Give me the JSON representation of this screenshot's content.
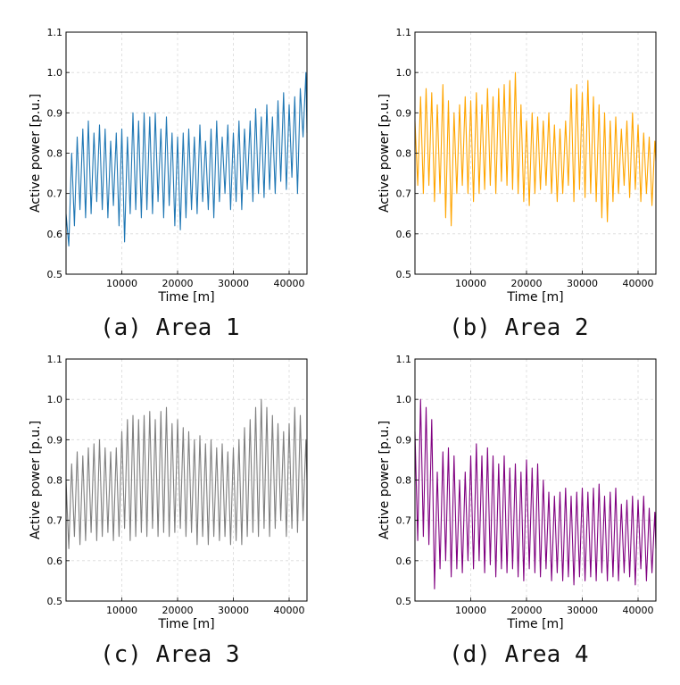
{
  "chart_data": [
    {
      "type": "line",
      "caption": "(a) Area 1",
      "xlabel": "Time [m]",
      "ylabel": "Active power [p.u.]",
      "xlim": [
        0,
        43200
      ],
      "ylim": [
        0.5,
        1.1
      ],
      "xticks": [
        10000,
        20000,
        30000,
        40000
      ],
      "yticks": [
        0.5,
        0.6,
        0.7,
        0.8,
        0.9,
        1.0,
        1.1
      ],
      "grid": true,
      "color": "#1f77b4",
      "series": [
        {
          "x": [
            0,
            500,
            1000,
            1500,
            2000,
            2500,
            3000,
            3500,
            4000,
            4500,
            5000,
            5500,
            6000,
            6500,
            7000,
            7500,
            8000,
            8500,
            9000,
            9500,
            10000,
            10500,
            11000,
            11500,
            12000,
            12500,
            13000,
            13500,
            14000,
            14500,
            15000,
            15500,
            16000,
            16500,
            17000,
            17500,
            18000,
            18500,
            19000,
            19500,
            20000,
            20500,
            21000,
            21500,
            22000,
            22500,
            23000,
            23500,
            24000,
            24500,
            25000,
            25500,
            26000,
            26500,
            27000,
            27500,
            28000,
            28500,
            29000,
            29500,
            30000,
            30500,
            31000,
            31500,
            32000,
            32500,
            33000,
            33500,
            34000,
            34500,
            35000,
            35500,
            36000,
            36500,
            37000,
            37500,
            38000,
            38500,
            39000,
            39500,
            40000,
            40500,
            41000,
            41500,
            42000,
            42500,
            43000,
            43200
          ],
          "y": [
            0.65,
            0.57,
            0.8,
            0.62,
            0.84,
            0.66,
            0.86,
            0.64,
            0.88,
            0.65,
            0.85,
            0.68,
            0.87,
            0.66,
            0.86,
            0.64,
            0.83,
            0.67,
            0.85,
            0.62,
            0.86,
            0.58,
            0.84,
            0.65,
            0.9,
            0.66,
            0.88,
            0.64,
            0.9,
            0.66,
            0.89,
            0.65,
            0.9,
            0.68,
            0.86,
            0.64,
            0.89,
            0.67,
            0.85,
            0.62,
            0.84,
            0.61,
            0.85,
            0.64,
            0.86,
            0.66,
            0.84,
            0.65,
            0.87,
            0.68,
            0.83,
            0.66,
            0.86,
            0.64,
            0.88,
            0.68,
            0.84,
            0.7,
            0.87,
            0.66,
            0.85,
            0.68,
            0.88,
            0.66,
            0.86,
            0.71,
            0.88,
            0.68,
            0.91,
            0.7,
            0.89,
            0.69,
            0.92,
            0.71,
            0.89,
            0.7,
            0.93,
            0.73,
            0.95,
            0.71,
            0.92,
            0.74,
            0.94,
            0.7,
            0.96,
            0.84,
            1.0,
            0.85
          ]
        }
      ]
    },
    {
      "type": "line",
      "caption": "(b) Area 2",
      "xlabel": "Time [m]",
      "ylabel": "Active power [p.u.]",
      "xlim": [
        0,
        43200
      ],
      "ylim": [
        0.5,
        1.1
      ],
      "xticks": [
        10000,
        20000,
        30000,
        40000
      ],
      "yticks": [
        0.5,
        0.6,
        0.7,
        0.8,
        0.9,
        1.0,
        1.1
      ],
      "grid": true,
      "color": "#ffa500",
      "series": [
        {
          "x": [
            0,
            500,
            1000,
            1500,
            2000,
            2500,
            3000,
            3500,
            4000,
            4500,
            5000,
            5500,
            6000,
            6500,
            7000,
            7500,
            8000,
            8500,
            9000,
            9500,
            10000,
            10500,
            11000,
            11500,
            12000,
            12500,
            13000,
            13500,
            14000,
            14500,
            15000,
            15500,
            16000,
            16500,
            17000,
            17500,
            18000,
            18500,
            19000,
            19500,
            20000,
            20500,
            21000,
            21500,
            22000,
            22500,
            23000,
            23500,
            24000,
            24500,
            25000,
            25500,
            26000,
            26500,
            27000,
            27500,
            28000,
            28500,
            29000,
            29500,
            30000,
            30500,
            31000,
            31500,
            32000,
            32500,
            33000,
            33500,
            34000,
            34500,
            35000,
            35500,
            36000,
            36500,
            37000,
            37500,
            38000,
            38500,
            39000,
            39500,
            40000,
            40500,
            41000,
            41500,
            42000,
            42500,
            43000,
            43200
          ],
          "y": [
            0.88,
            0.72,
            0.94,
            0.7,
            0.96,
            0.72,
            0.95,
            0.68,
            0.92,
            0.7,
            0.97,
            0.64,
            0.93,
            0.62,
            0.9,
            0.7,
            0.92,
            0.72,
            0.94,
            0.7,
            0.93,
            0.68,
            0.95,
            0.7,
            0.92,
            0.71,
            0.96,
            0.72,
            0.94,
            0.7,
            0.96,
            0.73,
            0.97,
            0.72,
            0.98,
            0.71,
            1.0,
            0.7,
            0.92,
            0.68,
            0.88,
            0.67,
            0.9,
            0.7,
            0.89,
            0.71,
            0.88,
            0.72,
            0.9,
            0.7,
            0.87,
            0.68,
            0.86,
            0.7,
            0.88,
            0.72,
            0.96,
            0.68,
            0.97,
            0.71,
            0.95,
            0.69,
            0.98,
            0.7,
            0.94,
            0.68,
            0.92,
            0.64,
            0.9,
            0.63,
            0.88,
            0.68,
            0.89,
            0.7,
            0.86,
            0.72,
            0.88,
            0.69,
            0.9,
            0.71,
            0.87,
            0.68,
            0.85,
            0.7,
            0.84,
            0.67,
            0.83,
            0.78
          ]
        }
      ]
    },
    {
      "type": "line",
      "caption": "(c) Area 3",
      "xlabel": "Time [m]",
      "ylabel": "Active power [p.u.]",
      "xlim": [
        0,
        43200
      ],
      "ylim": [
        0.5,
        1.1
      ],
      "xticks": [
        10000,
        20000,
        30000,
        40000
      ],
      "yticks": [
        0.5,
        0.6,
        0.7,
        0.8,
        0.9,
        1.0,
        1.1
      ],
      "grid": true,
      "color": "#7f7f7f",
      "series": [
        {
          "x": [
            0,
            500,
            1000,
            1500,
            2000,
            2500,
            3000,
            3500,
            4000,
            4500,
            5000,
            5500,
            6000,
            6500,
            7000,
            7500,
            8000,
            8500,
            9000,
            9500,
            10000,
            10500,
            11000,
            11500,
            12000,
            12500,
            13000,
            13500,
            14000,
            14500,
            15000,
            15500,
            16000,
            16500,
            17000,
            17500,
            18000,
            18500,
            19000,
            19500,
            20000,
            20500,
            21000,
            21500,
            22000,
            22500,
            23000,
            23500,
            24000,
            24500,
            25000,
            25500,
            26000,
            26500,
            27000,
            27500,
            28000,
            28500,
            29000,
            29500,
            30000,
            30500,
            31000,
            31500,
            32000,
            32500,
            33000,
            33500,
            34000,
            34500,
            35000,
            35500,
            36000,
            36500,
            37000,
            37500,
            38000,
            38500,
            39000,
            39500,
            40000,
            40500,
            41000,
            41500,
            42000,
            42500,
            43000,
            43200
          ],
          "y": [
            0.8,
            0.63,
            0.84,
            0.66,
            0.87,
            0.64,
            0.86,
            0.65,
            0.88,
            0.67,
            0.89,
            0.65,
            0.9,
            0.66,
            0.88,
            0.67,
            0.87,
            0.65,
            0.88,
            0.66,
            0.92,
            0.68,
            0.95,
            0.65,
            0.96,
            0.66,
            0.95,
            0.67,
            0.96,
            0.66,
            0.97,
            0.68,
            0.95,
            0.66,
            0.97,
            0.67,
            0.98,
            0.66,
            0.94,
            0.67,
            0.95,
            0.68,
            0.93,
            0.66,
            0.92,
            0.67,
            0.9,
            0.64,
            0.91,
            0.66,
            0.89,
            0.64,
            0.9,
            0.66,
            0.88,
            0.65,
            0.89,
            0.66,
            0.87,
            0.64,
            0.88,
            0.65,
            0.9,
            0.64,
            0.93,
            0.66,
            0.95,
            0.67,
            0.98,
            0.66,
            1.0,
            0.68,
            0.98,
            0.66,
            0.96,
            0.68,
            0.94,
            0.7,
            0.92,
            0.66,
            0.94,
            0.68,
            0.98,
            0.67,
            0.96,
            0.7,
            0.9,
            0.8
          ]
        }
      ]
    },
    {
      "type": "line",
      "caption": "(d) Area 4",
      "xlabel": "Time [m]",
      "ylabel": "Active power [p.u.]",
      "xlim": [
        0,
        43200
      ],
      "ylim": [
        0.5,
        1.1
      ],
      "xticks": [
        10000,
        20000,
        30000,
        40000
      ],
      "yticks": [
        0.5,
        0.6,
        0.7,
        0.8,
        0.9,
        1.0,
        1.1
      ],
      "grid": true,
      "color": "#800080",
      "series": [
        {
          "x": [
            0,
            500,
            1000,
            1500,
            2000,
            2500,
            3000,
            3500,
            4000,
            4500,
            5000,
            5500,
            6000,
            6500,
            7000,
            7500,
            8000,
            8500,
            9000,
            9500,
            10000,
            10500,
            11000,
            11500,
            12000,
            12500,
            13000,
            13500,
            14000,
            14500,
            15000,
            15500,
            16000,
            16500,
            17000,
            17500,
            18000,
            18500,
            19000,
            19500,
            20000,
            20500,
            21000,
            21500,
            22000,
            22500,
            23000,
            23500,
            24000,
            24500,
            25000,
            25500,
            26000,
            26500,
            27000,
            27500,
            28000,
            28500,
            29000,
            29500,
            30000,
            30500,
            31000,
            31500,
            32000,
            32500,
            33000,
            33500,
            34000,
            34500,
            35000,
            35500,
            36000,
            36500,
            37000,
            37500,
            38000,
            38500,
            39000,
            39500,
            40000,
            40500,
            41000,
            41500,
            42000,
            42500,
            43000,
            43200
          ],
          "y": [
            0.92,
            0.65,
            1.0,
            0.66,
            0.98,
            0.64,
            0.95,
            0.53,
            0.82,
            0.58,
            0.87,
            0.6,
            0.88,
            0.56,
            0.86,
            0.58,
            0.8,
            0.57,
            0.82,
            0.6,
            0.86,
            0.58,
            0.89,
            0.6,
            0.86,
            0.57,
            0.88,
            0.59,
            0.86,
            0.56,
            0.84,
            0.58,
            0.86,
            0.57,
            0.83,
            0.58,
            0.84,
            0.56,
            0.82,
            0.55,
            0.85,
            0.58,
            0.83,
            0.57,
            0.84,
            0.56,
            0.8,
            0.58,
            0.77,
            0.55,
            0.76,
            0.57,
            0.77,
            0.55,
            0.78,
            0.56,
            0.76,
            0.54,
            0.77,
            0.56,
            0.78,
            0.55,
            0.77,
            0.56,
            0.78,
            0.55,
            0.79,
            0.57,
            0.76,
            0.55,
            0.77,
            0.56,
            0.78,
            0.55,
            0.74,
            0.57,
            0.75,
            0.56,
            0.76,
            0.54,
            0.75,
            0.58,
            0.76,
            0.55,
            0.73,
            0.57,
            0.72,
            0.63
          ]
        }
      ]
    }
  ]
}
